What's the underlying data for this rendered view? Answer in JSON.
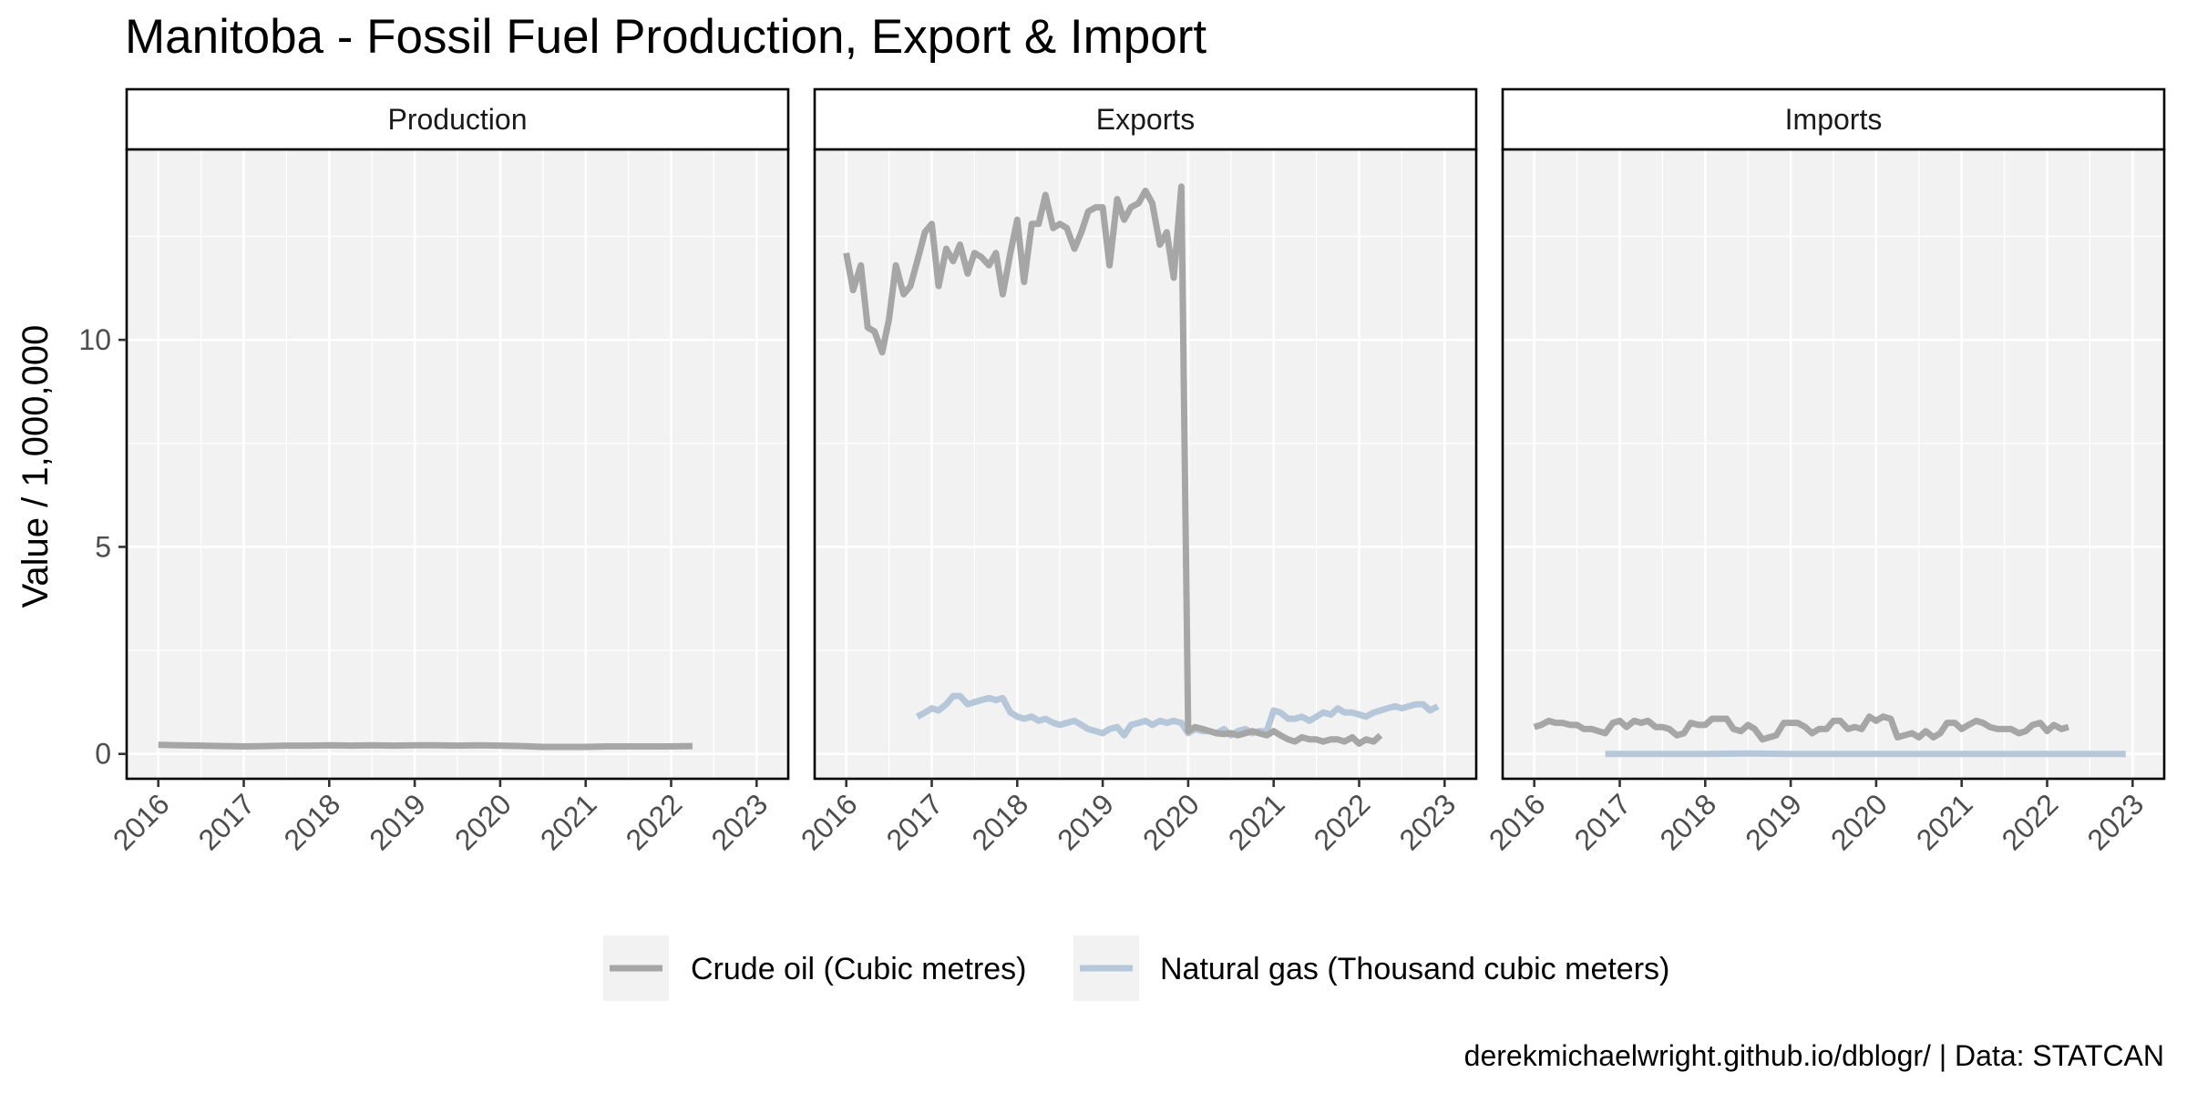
{
  "chart_data": {
    "type": "line",
    "title": "Manitoba - Fossil Fuel Production, Export & Import",
    "ylabel": "Value / 1,000,000",
    "caption": "derekmichaelwright.github.io/dblogr/ | Data: STATCAN",
    "ylim": [
      -0.6,
      14.6
    ],
    "y_ticks": [
      0,
      5,
      10
    ],
    "y_tick_labels": [
      "0",
      "5",
      "10"
    ],
    "xlim": [
      2015.63,
      2023.37
    ],
    "x_ticks": [
      2016,
      2017,
      2018,
      2019,
      2020,
      2021,
      2022,
      2023
    ],
    "x_tick_labels": [
      "2016",
      "2017",
      "2018",
      "2019",
      "2020",
      "2021",
      "2022",
      "2023"
    ],
    "legend_position": "bottom",
    "grid": true,
    "colors": {
      "crude_oil": "#a6a6a6",
      "natural_gas": "#b6c7d9"
    },
    "legend": [
      {
        "key": "crude_oil",
        "label": "Crude oil (Cubic metres)"
      },
      {
        "key": "natural_gas",
        "label": "Natural gas (Thousand cubic meters)"
      }
    ],
    "panels": [
      {
        "label": "Production",
        "series": {
          "crude_oil": {
            "x": [
              2016.0,
              2016.25,
              2016.5,
              2016.75,
              2017.0,
              2017.25,
              2017.5,
              2017.75,
              2018.0,
              2018.25,
              2018.5,
              2018.75,
              2019.0,
              2019.25,
              2019.5,
              2019.75,
              2020.0,
              2020.25,
              2020.5,
              2020.75,
              2021.0,
              2021.25,
              2021.5,
              2021.75,
              2022.0,
              2022.25
            ],
            "y": [
              0.22,
              0.21,
              0.2,
              0.19,
              0.18,
              0.19,
              0.2,
              0.2,
              0.21,
              0.2,
              0.21,
              0.2,
              0.21,
              0.21,
              0.2,
              0.21,
              0.2,
              0.19,
              0.17,
              0.17,
              0.17,
              0.18,
              0.18,
              0.18,
              0.18,
              0.19
            ]
          },
          "natural_gas": {
            "x": [],
            "y": []
          }
        }
      },
      {
        "label": "Exports",
        "series": {
          "crude_oil": {
            "x": [
              2016.0,
              2016.08,
              2016.17,
              2016.25,
              2016.33,
              2016.42,
              2016.5,
              2016.58,
              2016.67,
              2016.75,
              2016.83,
              2016.92,
              2017.0,
              2017.08,
              2017.17,
              2017.25,
              2017.33,
              2017.42,
              2017.5,
              2017.58,
              2017.67,
              2017.75,
              2017.83,
              2017.92,
              2018.0,
              2018.08,
              2018.17,
              2018.25,
              2018.33,
              2018.42,
              2018.5,
              2018.58,
              2018.67,
              2018.75,
              2018.83,
              2018.92,
              2019.0,
              2019.08,
              2019.17,
              2019.25,
              2019.33,
              2019.42,
              2019.5,
              2019.58,
              2019.67,
              2019.75,
              2019.83,
              2019.92,
              2020.0,
              2020.08,
              2020.17,
              2020.25,
              2020.33,
              2020.42,
              2020.5,
              2020.58,
              2020.67,
              2020.75,
              2020.83,
              2020.92,
              2021.0,
              2021.08,
              2021.17,
              2021.25,
              2021.33,
              2021.42,
              2021.5,
              2021.58,
              2021.67,
              2021.75,
              2021.83,
              2021.92,
              2022.0,
              2022.08,
              2022.17,
              2022.25
            ],
            "y": [
              12.1,
              11.2,
              11.8,
              10.3,
              10.2,
              9.7,
              10.5,
              11.8,
              11.1,
              11.3,
              11.9,
              12.6,
              12.8,
              11.3,
              12.2,
              11.9,
              12.3,
              11.6,
              12.1,
              12.0,
              11.8,
              12.1,
              11.1,
              12.1,
              12.9,
              11.4,
              12.8,
              12.8,
              13.5,
              12.7,
              12.8,
              12.7,
              12.2,
              12.6,
              13.1,
              13.2,
              13.2,
              11.8,
              13.4,
              12.9,
              13.2,
              13.3,
              13.6,
              13.3,
              12.3,
              12.6,
              11.5,
              13.7,
              0.55,
              0.65,
              0.6,
              0.55,
              0.5,
              0.48,
              0.5,
              0.45,
              0.5,
              0.55,
              0.5,
              0.45,
              0.55,
              0.45,
              0.35,
              0.3,
              0.4,
              0.35,
              0.35,
              0.3,
              0.35,
              0.35,
              0.3,
              0.4,
              0.25,
              0.35,
              0.3,
              0.45
            ]
          },
          "natural_gas": {
            "x": [
              2016.83,
              2016.92,
              2017.0,
              2017.08,
              2017.17,
              2017.25,
              2017.33,
              2017.42,
              2017.5,
              2017.58,
              2017.67,
              2017.75,
              2017.83,
              2017.92,
              2018.0,
              2018.08,
              2018.17,
              2018.25,
              2018.33,
              2018.42,
              2018.5,
              2018.58,
              2018.67,
              2018.75,
              2018.83,
              2018.92,
              2019.0,
              2019.08,
              2019.17,
              2019.25,
              2019.33,
              2019.42,
              2019.5,
              2019.58,
              2019.67,
              2019.75,
              2019.83,
              2019.92,
              2020.0,
              2020.08,
              2020.17,
              2020.25,
              2020.33,
              2020.42,
              2020.5,
              2020.58,
              2020.67,
              2020.75,
              2020.83,
              2020.92,
              2021.0,
              2021.08,
              2021.17,
              2021.25,
              2021.33,
              2021.42,
              2021.5,
              2021.58,
              2021.67,
              2021.75,
              2021.83,
              2021.92,
              2022.0,
              2022.08,
              2022.17,
              2022.25,
              2022.33,
              2022.42,
              2022.5,
              2022.58,
              2022.67,
              2022.75,
              2022.83,
              2022.92
            ],
            "y": [
              0.9,
              1.0,
              1.1,
              1.05,
              1.2,
              1.4,
              1.4,
              1.2,
              1.25,
              1.3,
              1.35,
              1.3,
              1.35,
              1.0,
              0.9,
              0.85,
              0.9,
              0.8,
              0.85,
              0.75,
              0.7,
              0.75,
              0.8,
              0.7,
              0.6,
              0.55,
              0.5,
              0.6,
              0.65,
              0.45,
              0.7,
              0.75,
              0.8,
              0.7,
              0.8,
              0.75,
              0.8,
              0.75,
              0.5,
              0.6,
              0.55,
              0.55,
              0.5,
              0.6,
              0.45,
              0.55,
              0.6,
              0.5,
              0.55,
              0.55,
              1.05,
              1.0,
              0.85,
              0.85,
              0.9,
              0.8,
              0.9,
              1.0,
              0.95,
              1.1,
              1.0,
              1.0,
              0.95,
              0.9,
              1.0,
              1.05,
              1.1,
              1.15,
              1.1,
              1.15,
              1.2,
              1.2,
              1.05,
              1.15
            ]
          }
        }
      },
      {
        "label": "Imports",
        "series": {
          "crude_oil": {
            "x": [
              2016.0,
              2016.08,
              2016.17,
              2016.25,
              2016.33,
              2016.42,
              2016.5,
              2016.58,
              2016.67,
              2016.75,
              2016.83,
              2016.92,
              2017.0,
              2017.08,
              2017.17,
              2017.25,
              2017.33,
              2017.42,
              2017.5,
              2017.58,
              2017.67,
              2017.75,
              2017.83,
              2017.92,
              2018.0,
              2018.08,
              2018.17,
              2018.25,
              2018.33,
              2018.42,
              2018.5,
              2018.58,
              2018.67,
              2018.75,
              2018.83,
              2018.92,
              2019.0,
              2019.08,
              2019.17,
              2019.25,
              2019.33,
              2019.42,
              2019.5,
              2019.58,
              2019.67,
              2019.75,
              2019.83,
              2019.92,
              2020.0,
              2020.08,
              2020.17,
              2020.25,
              2020.33,
              2020.42,
              2020.5,
              2020.58,
              2020.67,
              2020.75,
              2020.83,
              2020.92,
              2021.0,
              2021.08,
              2021.17,
              2021.25,
              2021.33,
              2021.42,
              2021.5,
              2021.58,
              2021.67,
              2021.75,
              2021.83,
              2021.92,
              2022.0,
              2022.08,
              2022.17,
              2022.25
            ],
            "y": [
              0.65,
              0.7,
              0.8,
              0.75,
              0.75,
              0.7,
              0.7,
              0.6,
              0.6,
              0.55,
              0.5,
              0.75,
              0.8,
              0.65,
              0.8,
              0.75,
              0.8,
              0.65,
              0.65,
              0.6,
              0.45,
              0.5,
              0.75,
              0.7,
              0.7,
              0.85,
              0.85,
              0.85,
              0.6,
              0.55,
              0.7,
              0.6,
              0.35,
              0.4,
              0.45,
              0.75,
              0.75,
              0.75,
              0.65,
              0.5,
              0.6,
              0.6,
              0.8,
              0.8,
              0.6,
              0.65,
              0.6,
              0.9,
              0.8,
              0.9,
              0.85,
              0.4,
              0.45,
              0.5,
              0.4,
              0.55,
              0.4,
              0.5,
              0.75,
              0.75,
              0.6,
              0.7,
              0.8,
              0.75,
              0.65,
              0.6,
              0.6,
              0.6,
              0.5,
              0.55,
              0.7,
              0.75,
              0.55,
              0.7,
              0.6,
              0.65
            ]
          },
          "natural_gas": {
            "x": [
              2016.83,
              2017.0,
              2017.5,
              2018.0,
              2018.5,
              2019.0,
              2019.5,
              2020.0,
              2020.5,
              2021.0,
              2021.5,
              2022.0,
              2022.5,
              2022.92
            ],
            "y": [
              0.0,
              0.0,
              0.0,
              0.0,
              0.01,
              0.0,
              0.0,
              0.0,
              0.0,
              0.0,
              0.0,
              0.0,
              0.0,
              0.0
            ]
          }
        }
      }
    ]
  }
}
